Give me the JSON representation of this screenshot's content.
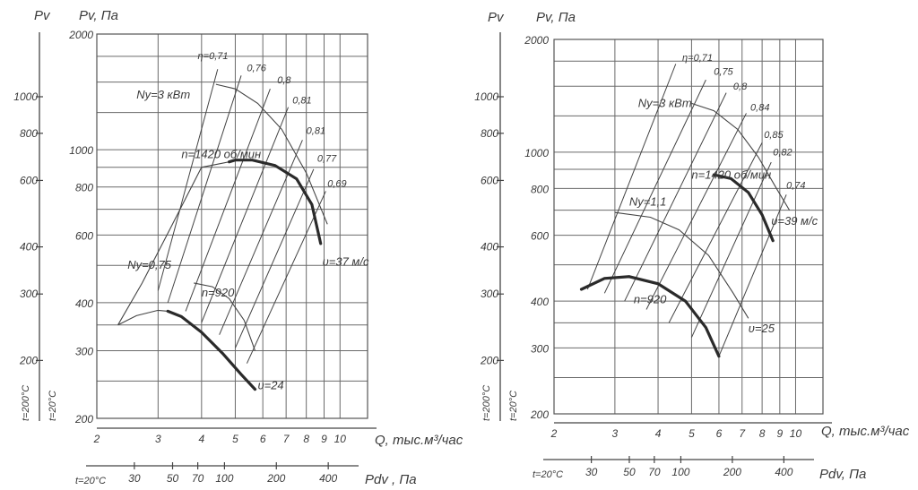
{
  "chart_data": [
    {
      "type": "line",
      "axis_titles": {
        "pv_outer": "Pv",
        "pv": "Pv, Па",
        "q": "Q, тыс.м³/час",
        "pdv": "Pdv , Па"
      },
      "q_axis": {
        "scale": "log",
        "range": [
          2,
          12
        ],
        "ticks": [
          2,
          3,
          4,
          5,
          6,
          7,
          8,
          9,
          10
        ]
      },
      "pv_axis": {
        "scale": "log",
        "range": [
          200,
          2000
        ],
        "ticks": [
          200,
          300,
          400,
          600,
          800,
          1000,
          2000
        ]
      },
      "pv_outer_axis": {
        "ticks": [
          200,
          300,
          400,
          600,
          800,
          1000
        ],
        "label_20": "t=20°C",
        "label_200": "t=200°C"
      },
      "pdv_axis": {
        "ticks": [
          30,
          50,
          70,
          100,
          200,
          400
        ],
        "lead_label": "t=20°C"
      },
      "curves": [
        {
          "name": "n=1420 об/мин",
          "bold": true,
          "points": [
            [
              4.8,
              930
            ],
            [
              5.0,
              940
            ],
            [
              5.6,
              940
            ],
            [
              6.5,
              910
            ],
            [
              7.5,
              840
            ],
            [
              8.3,
              720
            ],
            [
              8.8,
              570
            ]
          ]
        },
        {
          "name": "n=920",
          "bold": true,
          "points": [
            [
              3.2,
              380
            ],
            [
              3.5,
              368
            ],
            [
              4.0,
              335
            ],
            [
              4.6,
              295
            ],
            [
              5.2,
              260
            ],
            [
              5.7,
              238
            ]
          ]
        }
      ],
      "thin_curves": [
        {
          "name": "upper-left",
          "points": [
            [
              2.3,
              350
            ],
            [
              2.7,
              450
            ],
            [
              3.3,
              640
            ],
            [
              4.0,
              900
            ],
            [
              4.8,
              930
            ]
          ]
        },
        {
          "name": "lower-left",
          "points": [
            [
              2.3,
              350
            ],
            [
              2.6,
              370
            ],
            [
              3.0,
              382
            ],
            [
              3.2,
              380
            ]
          ]
        },
        {
          "name": "eta-upper",
          "points": [
            [
              4.4,
              1480
            ],
            [
              5.0,
              1440
            ],
            [
              5.8,
              1320
            ],
            [
              6.8,
              1130
            ],
            [
              8.0,
              870
            ],
            [
              9.2,
              640
            ]
          ]
        },
        {
          "name": "eta-lower",
          "points": [
            [
              3.8,
              450
            ],
            [
              4.3,
              440
            ],
            [
              4.8,
              410
            ],
            [
              5.3,
              360
            ],
            [
              5.7,
              300
            ]
          ]
        }
      ],
      "efficiency_lines": [
        {
          "label": "η=0,71",
          "label_at": [
            3.9,
            1720
          ],
          "from": [
            3.0,
            430
          ],
          "to": [
            4.45,
            1620
          ]
        },
        {
          "label": "0,76",
          "label_at": [
            5.4,
            1600
          ],
          "from": [
            3.2,
            400
          ],
          "to": [
            5.2,
            1560
          ]
        },
        {
          "label": "0,8",
          "label_at": [
            6.6,
            1490
          ],
          "from": [
            3.6,
            380
          ],
          "to": [
            6.3,
            1440
          ]
        },
        {
          "label": "0,81",
          "label_at": [
            7.3,
            1320
          ],
          "from": [
            4.0,
            355
          ],
          "to": [
            7.1,
            1290
          ]
        },
        {
          "label": "0,81",
          "label_at": [
            8.0,
            1100
          ],
          "from": [
            4.5,
            330
          ],
          "to": [
            7.8,
            1060
          ]
        },
        {
          "label": "0,77",
          "label_at": [
            8.6,
            930
          ],
          "from": [
            5.0,
            305
          ],
          "to": [
            8.4,
            890
          ]
        },
        {
          "label": "0,69",
          "label_at": [
            9.2,
            800
          ],
          "from": [
            5.4,
            278
          ],
          "to": [
            9.1,
            780
          ]
        }
      ],
      "annotations": [
        {
          "text": "Nу=3 кВт",
          "at": [
            2.6,
            1360
          ]
        },
        {
          "text": "Nу=0,75",
          "at": [
            2.45,
            490
          ]
        },
        {
          "text": "n=1420 об/мин",
          "at": [
            3.5,
            950
          ]
        },
        {
          "text": "n=920",
          "at": [
            4.0,
            415
          ]
        },
        {
          "text": "υ=37 м/с",
          "at": [
            8.9,
            500
          ]
        },
        {
          "text": "υ=24",
          "at": [
            5.8,
            238
          ]
        }
      ]
    },
    {
      "type": "line",
      "axis_titles": {
        "pv_outer": "Pv",
        "pv": "Pv, Па",
        "q": "Q, тыс.м³/час",
        "pdv": "Pdv, Па"
      },
      "q_axis": {
        "scale": "log",
        "range": [
          2,
          12
        ],
        "ticks": [
          2,
          3,
          4,
          5,
          6,
          7,
          8,
          9,
          10
        ]
      },
      "pv_axis": {
        "scale": "log",
        "range": [
          200,
          2000
        ],
        "ticks": [
          200,
          300,
          400,
          600,
          800,
          1000,
          2000
        ]
      },
      "pv_outer_axis": {
        "ticks": [
          200,
          300,
          400,
          600,
          800,
          1000
        ],
        "label_20": "t=20°C",
        "label_200": "t=200°C"
      },
      "pdv_axis": {
        "ticks": [
          30,
          50,
          70,
          100,
          200,
          400
        ],
        "lead_label": "t=20°C"
      },
      "curves": [
        {
          "name": "n=1420 об/мин",
          "bold": true,
          "points": [
            [
              5.8,
              870
            ],
            [
              6.5,
              850
            ],
            [
              7.3,
              780
            ],
            [
              8.0,
              680
            ],
            [
              8.6,
              580
            ]
          ]
        },
        {
          "name": "n=920",
          "bold": true,
          "points": [
            [
              2.4,
              430
            ],
            [
              2.8,
              460
            ],
            [
              3.3,
              465
            ],
            [
              4.0,
              445
            ],
            [
              4.8,
              400
            ],
            [
              5.5,
              340
            ],
            [
              6.0,
              285
            ]
          ]
        }
      ],
      "thin_curves": [
        {
          "name": "eta-upper",
          "points": [
            [
              5.0,
              1350
            ],
            [
              5.8,
              1290
            ],
            [
              6.8,
              1150
            ],
            [
              7.8,
              970
            ],
            [
              8.8,
              800
            ],
            [
              9.6,
              700
            ]
          ]
        },
        {
          "name": "eta-lower",
          "points": [
            [
              3.0,
              690
            ],
            [
              3.8,
              670
            ],
            [
              4.6,
              620
            ],
            [
              5.6,
              530
            ],
            [
              6.6,
              420
            ],
            [
              7.3,
              360
            ]
          ]
        }
      ],
      "efficiency_lines": [
        {
          "label": "η=0,71",
          "label_at": [
            4.7,
            1750
          ],
          "from": [
            2.5,
            430
          ],
          "to": [
            4.5,
            1720
          ]
        },
        {
          "label": "0,75",
          "label_at": [
            5.8,
            1610
          ],
          "from": [
            2.8,
            420
          ],
          "to": [
            5.5,
            1560
          ]
        },
        {
          "label": "0,8",
          "label_at": [
            6.6,
            1470
          ],
          "from": [
            3.2,
            400
          ],
          "to": [
            6.3,
            1440
          ]
        },
        {
          "label": "0,84",
          "label_at": [
            7.4,
            1290
          ],
          "from": [
            3.7,
            380
          ],
          "to": [
            7.2,
            1270
          ]
        },
        {
          "label": "0,85",
          "label_at": [
            8.1,
            1090
          ],
          "from": [
            4.3,
            350
          ],
          "to": [
            8.0,
            1060
          ]
        },
        {
          "label": "0,82",
          "label_at": [
            8.6,
            980
          ],
          "from": [
            5.0,
            320
          ],
          "to": [
            8.5,
            940
          ]
        },
        {
          "label": "0,74",
          "label_at": [
            9.4,
            800
          ],
          "from": [
            6.0,
            285
          ],
          "to": [
            9.4,
            770
          ]
        }
      ],
      "annotations": [
        {
          "text": "Nу=3 кВт",
          "at": [
            3.5,
            1320
          ]
        },
        {
          "text": "Nу=1,1",
          "at": [
            3.3,
            720
          ]
        },
        {
          "text": "n=1420 об/мин",
          "at": [
            5.0,
            850
          ]
        },
        {
          "text": "n=920",
          "at": [
            3.4,
            395
          ]
        },
        {
          "text": "υ=39 м/с",
          "at": [
            8.5,
            640
          ]
        },
        {
          "text": "υ=25",
          "at": [
            7.3,
            330
          ]
        }
      ]
    }
  ]
}
